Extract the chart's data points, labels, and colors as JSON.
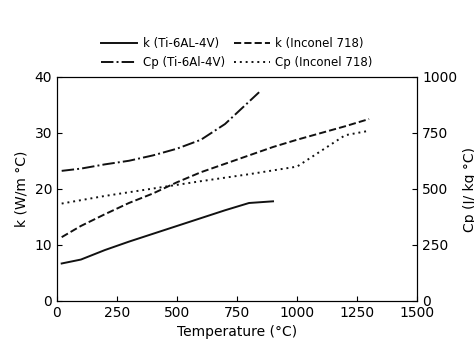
{
  "title": "",
  "xlabel": "Temperature (°C)",
  "ylabel_left": "k (W/m °C)",
  "ylabel_right": "Cp (J/ kg °C)",
  "xlim": [
    0,
    1500
  ],
  "ylim_left": [
    0,
    40
  ],
  "ylim_right": [
    0,
    1000
  ],
  "xticks": [
    0,
    250,
    500,
    750,
    1000,
    1250,
    1500
  ],
  "yticks_left": [
    0,
    10,
    20,
    30,
    40
  ],
  "yticks_right": [
    0,
    250,
    500,
    750,
    1000
  ],
  "k_ti6al4v_T": [
    20,
    100,
    200,
    300,
    400,
    500,
    600,
    700,
    800,
    900
  ],
  "k_ti6al4v_k": [
    6.7,
    7.4,
    9.1,
    10.6,
    12.0,
    13.4,
    14.8,
    16.2,
    17.5,
    17.8
  ],
  "k_inconel718_T": [
    20,
    100,
    200,
    300,
    400,
    500,
    600,
    700,
    800,
    900,
    1000,
    1100,
    1200,
    1300
  ],
  "k_inconel718_k": [
    11.4,
    13.4,
    15.5,
    17.5,
    19.2,
    21.2,
    23.0,
    24.5,
    26.0,
    27.5,
    28.8,
    30.0,
    31.2,
    32.5
  ],
  "Cp_ti6al4v_T": [
    20,
    100,
    200,
    300,
    400,
    500,
    600,
    700,
    800,
    850
  ],
  "Cp_ti6al4v_Cp": [
    581,
    591,
    610,
    626,
    650,
    680,
    720,
    790,
    890,
    940
  ],
  "Cp_inconel718_T": [
    20,
    200,
    400,
    600,
    800,
    1000,
    1200,
    1300
  ],
  "Cp_inconel718_Cp": [
    435,
    469,
    502,
    535,
    566,
    600,
    740,
    760
  ],
  "background_color": "#ffffff",
  "line_color": "#111111",
  "linewidth": 1.4,
  "fontsize": 10,
  "legend_fontsize": 8.5
}
